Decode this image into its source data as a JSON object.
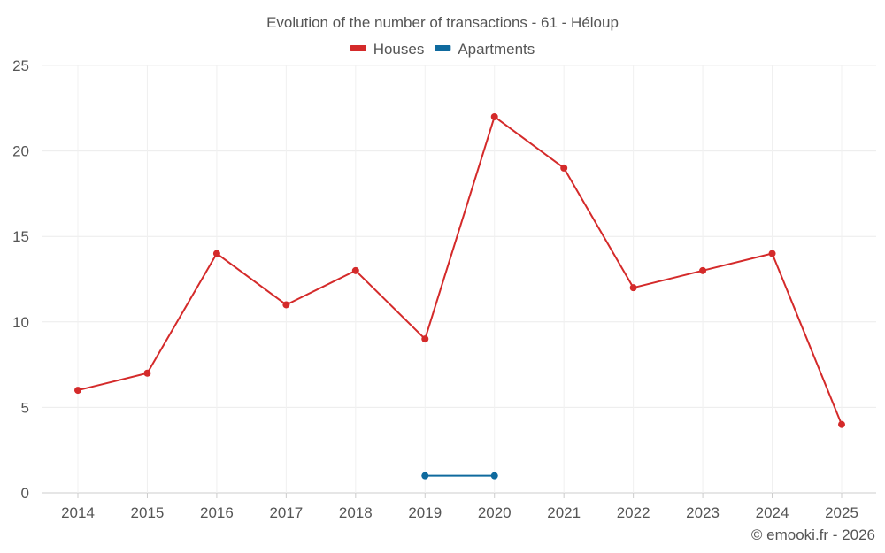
{
  "chart_data": {
    "type": "line",
    "title": "Evolution of the number of transactions - 61 - Héloup",
    "categories": [
      "2014",
      "2015",
      "2016",
      "2017",
      "2018",
      "2019",
      "2020",
      "2021",
      "2022",
      "2023",
      "2024",
      "2025"
    ],
    "series": [
      {
        "name": "Houses",
        "color": "#d42a2a",
        "values": [
          6,
          7,
          14,
          11,
          13,
          9,
          22,
          19,
          12,
          13,
          14,
          4
        ]
      },
      {
        "name": "Apartments",
        "color": "#0f6a9e",
        "values": [
          null,
          null,
          null,
          null,
          null,
          1,
          1,
          null,
          null,
          null,
          null,
          null
        ]
      }
    ],
    "ylim": [
      0,
      25
    ],
    "yticks": [
      0,
      5,
      10,
      15,
      20,
      25
    ],
    "xlabel": "",
    "ylabel": "",
    "legend_position": "top-center",
    "grid": true
  },
  "footer": {
    "credit": "© emooki.fr - 2026"
  }
}
